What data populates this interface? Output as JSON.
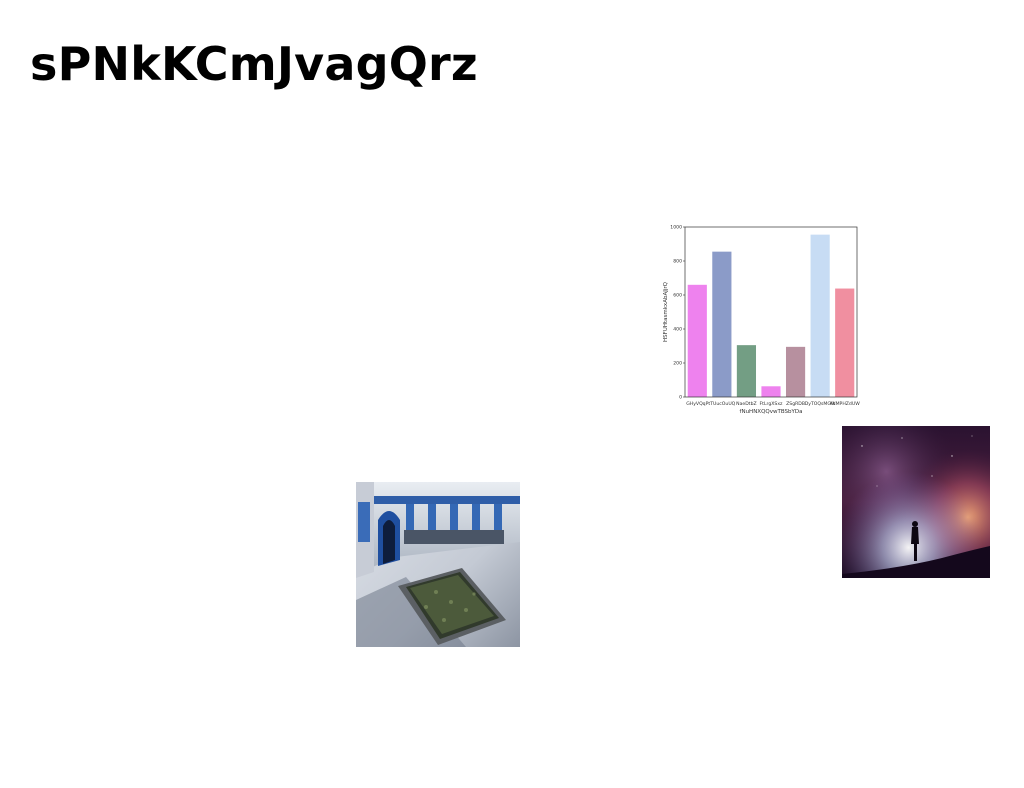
{
  "title": "sPNkKCmJvagQrz",
  "images": {
    "courtyard": "courtyard-photo",
    "nightsky": "night-sky-photo"
  },
  "chart_data": {
    "type": "bar",
    "categories": [
      "GHyVQqP",
      "tTUucOuUQ",
      "NaeDtbZ",
      "FtLrgXSxz",
      "ZSgRDB",
      "DyTOQsMGW",
      "KhMPHZdUW"
    ],
    "values": [
      660,
      855,
      305,
      63,
      295,
      955,
      638
    ],
    "colors": [
      "#ee82ee",
      "#8b9bc8",
      "#739e84",
      "#ee82ee",
      "#b7909f",
      "#c7dcf4",
      "#f08fa0"
    ],
    "xlabel": "fNuHNXQQvwTBSbYDa",
    "ylabel": "HSFUHtasmkxAbAJjrQ",
    "ylim": [
      0,
      1000
    ],
    "yticks": [
      0,
      200,
      400,
      600,
      800,
      1000
    ]
  }
}
